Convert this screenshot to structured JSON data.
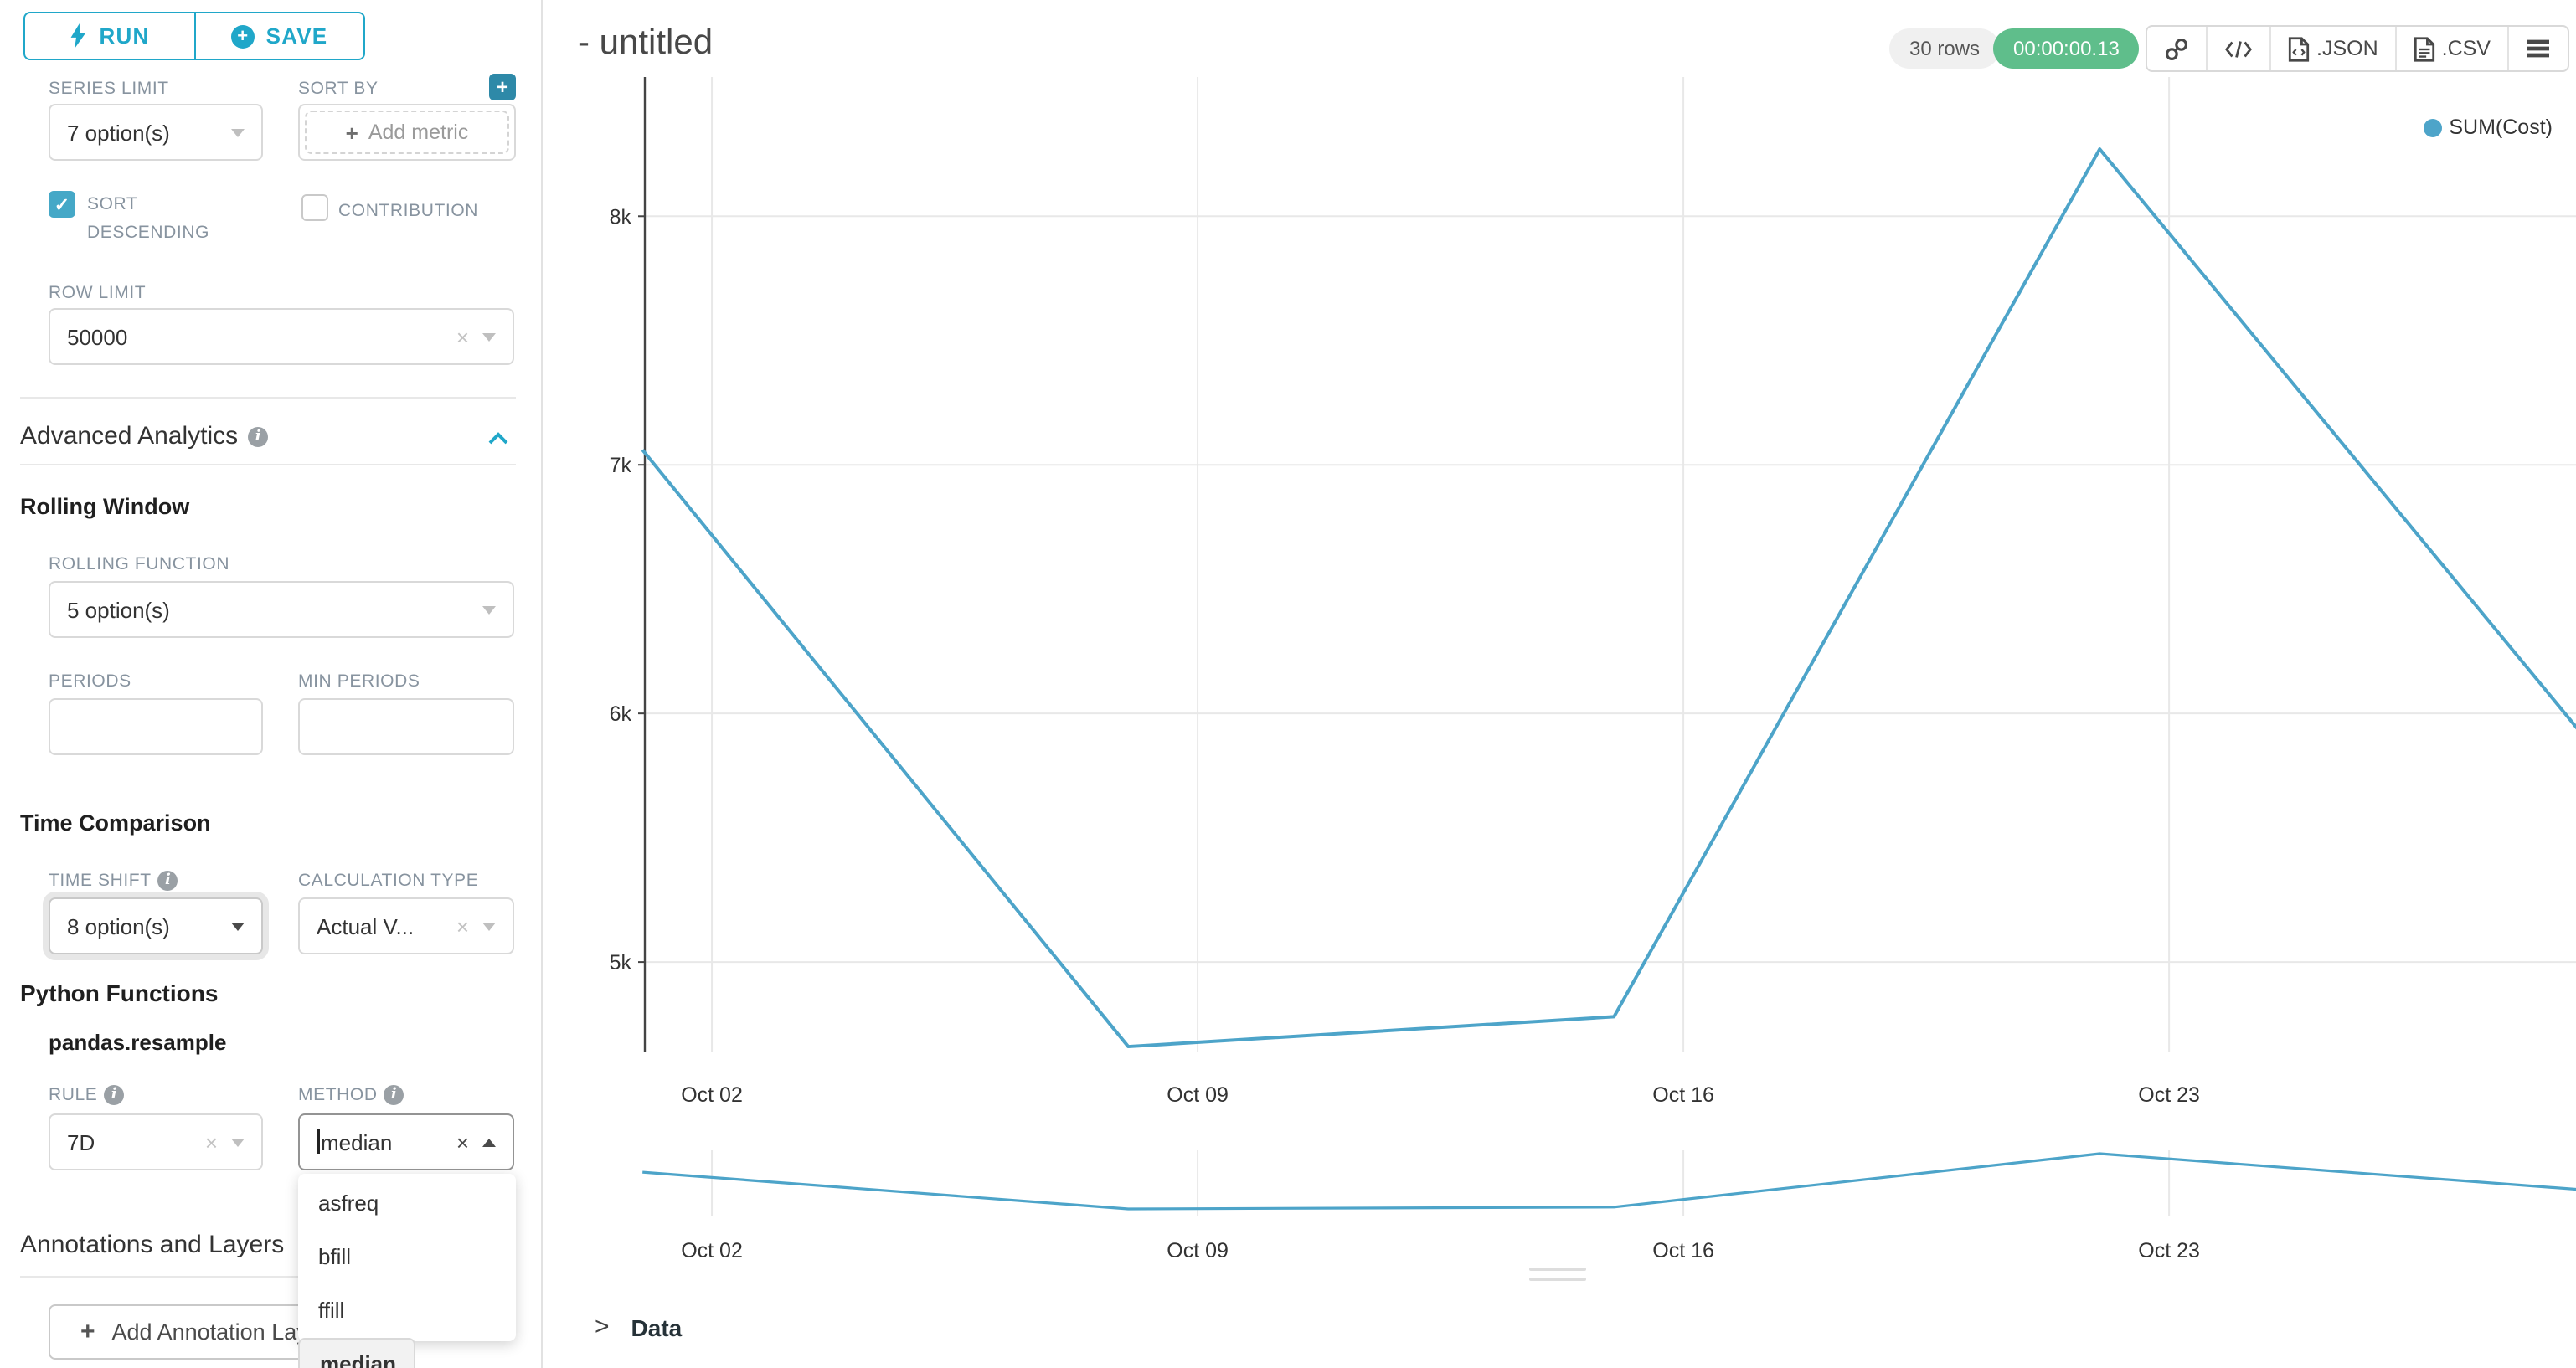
{
  "accent": "#20A7C9",
  "sidebar": {
    "run_label": "RUN",
    "save_label": "SAVE",
    "series_limit": {
      "label": "SERIES LIMIT",
      "value": "7 option(s)"
    },
    "sort_by": {
      "label": "SORT BY",
      "placeholder": "Add metric"
    },
    "sort_descending": {
      "label": "SORT DESCENDING",
      "checked": true
    },
    "contribution": {
      "label": "CONTRIBUTION",
      "checked": false
    },
    "row_limit": {
      "label": "ROW LIMIT",
      "value": "50000"
    },
    "advanced_analytics_title": "Advanced Analytics",
    "rolling_window": {
      "title": "Rolling Window",
      "rolling_function": {
        "label": "ROLLING FUNCTION",
        "value": "5 option(s)"
      },
      "periods_label": "PERIODS",
      "min_periods_label": "MIN PERIODS"
    },
    "time_comparison": {
      "title": "Time Comparison",
      "time_shift": {
        "label": "TIME SHIFT",
        "value": "8 option(s)"
      },
      "calculation_type": {
        "label": "CALCULATION TYPE",
        "value": "Actual V..."
      }
    },
    "python_functions": {
      "title": "Python Functions",
      "subtitle": "pandas.resample",
      "rule": {
        "label": "RULE",
        "value": "7D"
      },
      "method": {
        "label": "METHOD",
        "value": "median",
        "selected": "median",
        "options": [
          "asfreq",
          "bfill",
          "ffill",
          "median"
        ]
      }
    },
    "annotations": {
      "title": "Annotations and Layers",
      "add_button": "Add Annotation Layer"
    }
  },
  "header": {
    "title": "- untitled",
    "rows_badge": "30 rows",
    "timer_badge": "00:00:00.13",
    "timer_color": "#5FBE8B",
    "toolbar": {
      "json_label": ".JSON",
      "csv_label": ".CSV"
    }
  },
  "chart_data": {
    "type": "line",
    "legend": [
      "SUM(Cost)"
    ],
    "legend_position": "top-right",
    "line_color": "#4DA4C9",
    "grid": true,
    "x": [
      "Oct 01",
      "Oct 08",
      "Oct 15",
      "Oct 22",
      "Oct 29"
    ],
    "x_day_offsets": [
      -1,
      6,
      13,
      20,
      27
    ],
    "series": [
      {
        "name": "SUM(Cost)",
        "values": [
          7060,
          4660,
          4780,
          8270,
          5900
        ]
      }
    ],
    "x_tick_labels": [
      "Oct 02",
      "Oct 09",
      "Oct 16",
      "Oct 23"
    ],
    "x_tick_days": [
      0,
      7,
      14,
      21
    ],
    "y_ticks": [
      {
        "label": "5k",
        "value": 5000
      },
      {
        "label": "6k",
        "value": 6000
      },
      {
        "label": "7k",
        "value": 7000
      },
      {
        "label": "8k",
        "value": 8000
      }
    ],
    "ylim": [
      4640,
      8560
    ],
    "xlim_days": [
      -1,
      26.9
    ],
    "mini_preview": true
  },
  "data_panel": {
    "title": "Data"
  }
}
